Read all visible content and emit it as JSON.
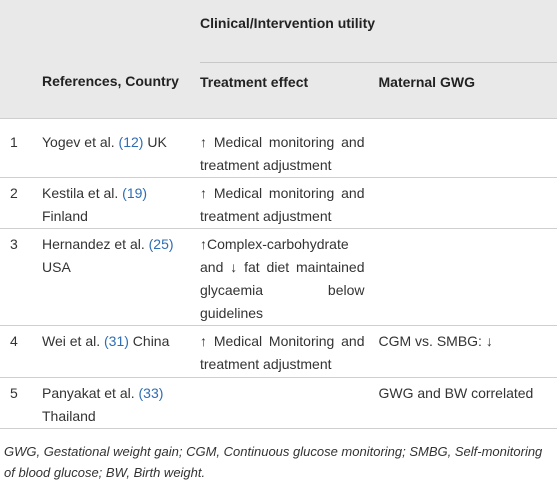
{
  "table": {
    "group_header": "Clinical/Intervention utility",
    "columns": [
      "References, Country",
      "Treatment effect",
      "Maternal GWG"
    ],
    "rows": [
      {
        "num": "1",
        "ref": "Yogev et al.",
        "cite": "(12)",
        "country": "UK",
        "treatment": "↑ Medical monitoring and treatment adjustment",
        "gwg": ""
      },
      {
        "num": "2",
        "ref": "Kestila et al.",
        "cite": "(19)",
        "country": "Finland",
        "treatment": "↑ Medical monitoring and treatment adjustment",
        "gwg": ""
      },
      {
        "num": "3",
        "ref": "Hernandez et al.",
        "cite": "(25)",
        "country": "USA",
        "treatment": "↑Complex-carbohydrate and ↓ fat diet maintained glycaemia below guidelines",
        "gwg": ""
      },
      {
        "num": "4",
        "ref": "Wei et al.",
        "cite": "(31)",
        "country": "China",
        "treatment": "↑ Medical Monitoring and treatment adjustment",
        "gwg": "CGM vs. SMBG: ↓"
      },
      {
        "num": "5",
        "ref": "Panyakat et al.",
        "cite": "(33)",
        "country": "Thailand",
        "treatment": "",
        "gwg": "GWG and BW correlated"
      }
    ],
    "footnote": "GWG, Gestational weight gain; CGM, Continuous glucose monitoring; SMBG, Self-monitoring of blood glucose; BW, Birth weight."
  }
}
